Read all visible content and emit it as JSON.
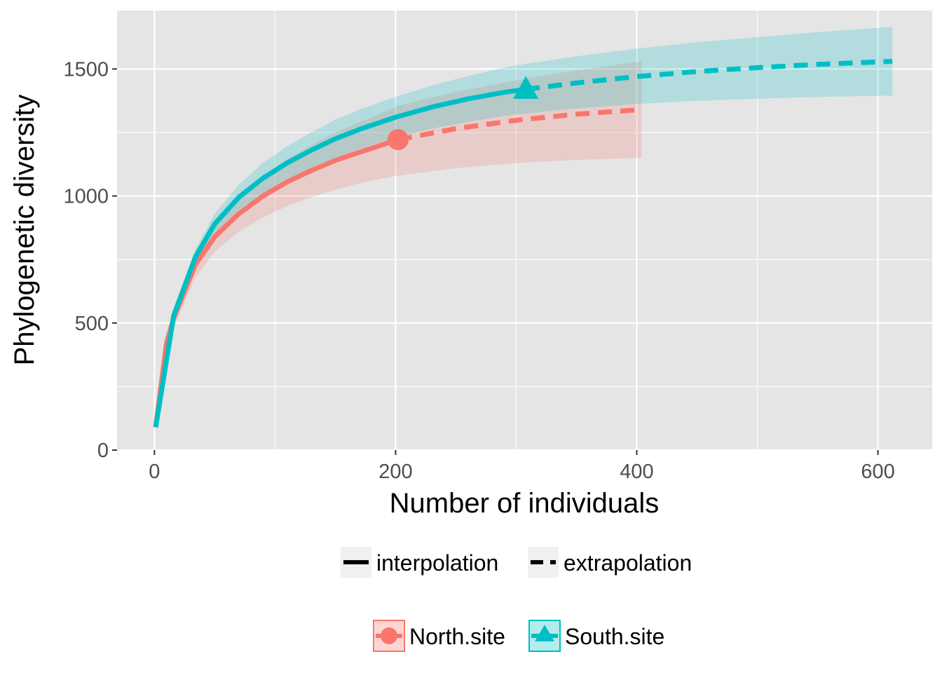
{
  "chart_data": {
    "type": "line",
    "xlabel": "Number of individuals",
    "ylabel": "Phylogenetic diversity",
    "xlim": [
      -31,
      645
    ],
    "ylim": [
      0,
      1730
    ],
    "x_ticks": [
      0,
      200,
      400,
      600
    ],
    "y_ticks": [
      0,
      500,
      1000,
      1500
    ],
    "x_tick_labels": [
      "0",
      "200",
      "400",
      "600"
    ],
    "y_tick_labels": [
      "0",
      "500",
      "1000",
      "1500"
    ],
    "grid": true,
    "legend_position": "bottom",
    "linetype_legend": [
      "interpolation",
      "extrapolation"
    ],
    "colors": {
      "North.site": "#F8766D",
      "South.site": "#00BFC4",
      "panel": "#e5e5e5",
      "grid": "#ffffff"
    },
    "series": [
      {
        "name": "North.site",
        "color": "#F8766D",
        "marker": "circle",
        "observed": {
          "x": 202,
          "y": 1222
        },
        "interpolation": {
          "x": [
            1,
            10,
            16,
            34,
            50,
            70,
            90,
            110,
            130,
            150,
            170,
            190,
            202
          ],
          "y": [
            90,
            420,
            520,
            730,
            840,
            930,
            1000,
            1055,
            1100,
            1140,
            1172,
            1203,
            1222
          ]
        },
        "extrapolation": {
          "x": [
            202,
            250,
            300,
            350,
            404
          ],
          "y": [
            1222,
            1265,
            1298,
            1322,
            1340
          ]
        },
        "ci_lower": {
          "x": [
            1,
            10,
            16,
            34,
            50,
            70,
            90,
            110,
            130,
            150,
            170,
            190,
            202,
            250,
            300,
            350,
            404
          ],
          "y": [
            85,
            390,
            480,
            680,
            780,
            860,
            915,
            960,
            995,
            1025,
            1050,
            1070,
            1080,
            1110,
            1130,
            1142,
            1150
          ]
        },
        "ci_upper": {
          "x": [
            1,
            10,
            16,
            34,
            50,
            70,
            90,
            110,
            130,
            150,
            170,
            190,
            202,
            250,
            300,
            350,
            404
          ],
          "y": [
            95,
            450,
            560,
            780,
            900,
            1000,
            1080,
            1145,
            1200,
            1250,
            1290,
            1330,
            1355,
            1410,
            1455,
            1495,
            1530
          ]
        }
      },
      {
        "name": "South.site",
        "color": "#00BFC4",
        "marker": "triangle",
        "observed": {
          "x": 308,
          "y": 1420
        },
        "interpolation": {
          "x": [
            1,
            16,
            34,
            50,
            70,
            90,
            110,
            130,
            150,
            170,
            200,
            230,
            260,
            290,
            308
          ],
          "y": [
            90,
            530,
            760,
            890,
            995,
            1070,
            1130,
            1180,
            1225,
            1262,
            1310,
            1350,
            1382,
            1408,
            1420
          ]
        },
        "extrapolation": {
          "x": [
            308,
            350,
            400,
            450,
            500,
            550,
            612
          ],
          "y": [
            1420,
            1445,
            1470,
            1490,
            1505,
            1518,
            1530
          ]
        },
        "ci_lower": {
          "x": [
            1,
            16,
            34,
            50,
            70,
            90,
            110,
            130,
            150,
            170,
            200,
            230,
            260,
            290,
            308,
            350,
            400,
            450,
            500,
            550,
            612
          ],
          "y": [
            85,
            510,
            730,
            850,
            945,
            1010,
            1065,
            1110,
            1150,
            1185,
            1230,
            1265,
            1292,
            1315,
            1325,
            1345,
            1362,
            1375,
            1383,
            1390,
            1395
          ]
        },
        "ci_upper": {
          "x": [
            1,
            16,
            34,
            50,
            70,
            90,
            110,
            130,
            150,
            170,
            200,
            230,
            260,
            290,
            308,
            350,
            400,
            450,
            500,
            550,
            612
          ],
          "y": [
            95,
            550,
            790,
            930,
            1045,
            1130,
            1195,
            1250,
            1300,
            1340,
            1390,
            1435,
            1472,
            1505,
            1520,
            1550,
            1580,
            1605,
            1625,
            1645,
            1665
          ]
        }
      }
    ]
  }
}
